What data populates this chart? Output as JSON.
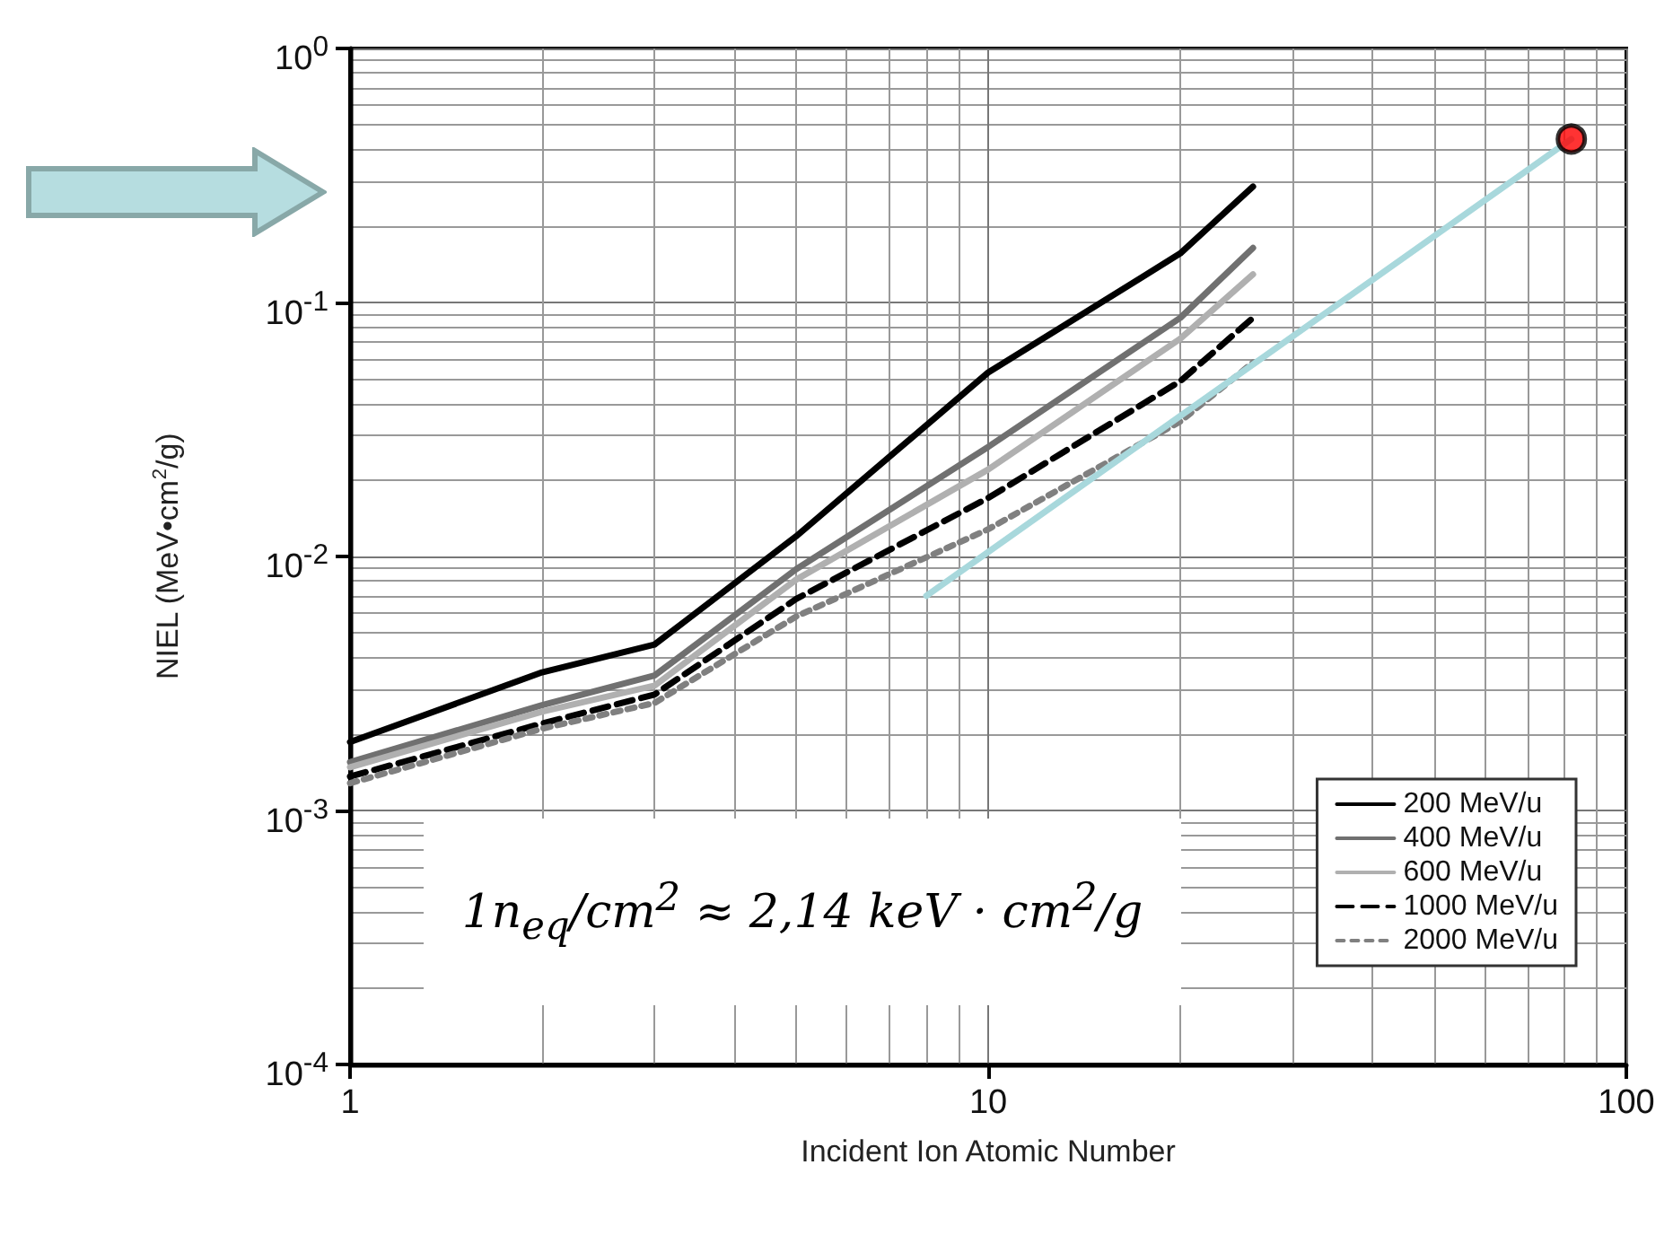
{
  "chart_data": {
    "type": "line",
    "xlabel": "Incident Ion Atomic Number",
    "ylabel": "NIEL (MeV•cm$^{2}$/g)",
    "log": "xy",
    "xlim": [
      1,
      100
    ],
    "xticks": [
      1,
      10,
      100
    ],
    "ylim": [
      0.0001,
      1
    ],
    "yticks": [
      {
        "value": 0.0001,
        "label": "10$^{-4}$"
      },
      {
        "value": 0.001,
        "label": "10$^{-3}$"
      },
      {
        "value": 0.01,
        "label": "10$^{-2}$"
      },
      {
        "value": 0.1,
        "label": "10$^{-1}$"
      },
      {
        "value": 1,
        "label": "10$^{0}$"
      }
    ],
    "grid": true,
    "legend": "bottom right",
    "marker": "none",
    "series": [
      {
        "name": "200 MeV/u",
        "color": "#000000",
        "line_style": "solid",
        "x": [
          1,
          2,
          3,
          5,
          10,
          20,
          26
        ],
        "values": [
          0.00186,
          0.0035,
          0.0045,
          0.012,
          0.053,
          0.156,
          0.286
        ]
      },
      {
        "name": "400 MeV/u",
        "color": "#707070",
        "line_style": "solid",
        "x": [
          1,
          2,
          3,
          5,
          10,
          20,
          26
        ],
        "values": [
          0.00155,
          0.0026,
          0.0034,
          0.0089,
          0.027,
          0.087,
          0.164
        ]
      },
      {
        "name": "600 MeV/u",
        "color": "#b0b0b0",
        "line_style": "solid",
        "x": [
          1,
          2,
          3,
          5,
          10,
          20,
          26
        ],
        "values": [
          0.00148,
          0.00245,
          0.0031,
          0.0081,
          0.022,
          0.072,
          0.129
        ]
      },
      {
        "name": "1000 MeV/u",
        "color": "#000000",
        "line_style": "dashed",
        "x": [
          1,
          2,
          3,
          5,
          10,
          20,
          26
        ],
        "values": [
          0.00136,
          0.0022,
          0.00286,
          0.0068,
          0.017,
          0.049,
          0.087
        ]
      },
      {
        "name": "2000 MeV/u",
        "color": "#808080",
        "line_style": "dotted",
        "x": [
          1,
          2,
          3,
          5,
          10,
          20,
          26
        ],
        "values": [
          0.00128,
          0.0021,
          0.00265,
          0.0058,
          0.0128,
          0.034,
          0.058
        ]
      },
      {
        "color": "#a8d8dc",
        "line_style": "solid",
        "x": [
          8,
          82
        ],
        "values": [
          0.007,
          0.44
        ]
      },
      {
        "type": "scatter",
        "color": "#ff0000",
        "marker": "circle",
        "x": [
          82
        ],
        "values": [
          0.44
        ]
      }
    ],
    "annotations": [
      "1n$_{eq}$/cm$^{2}$ ≈ 2,14 keV · cm$^{2}$/g"
    ]
  }
}
